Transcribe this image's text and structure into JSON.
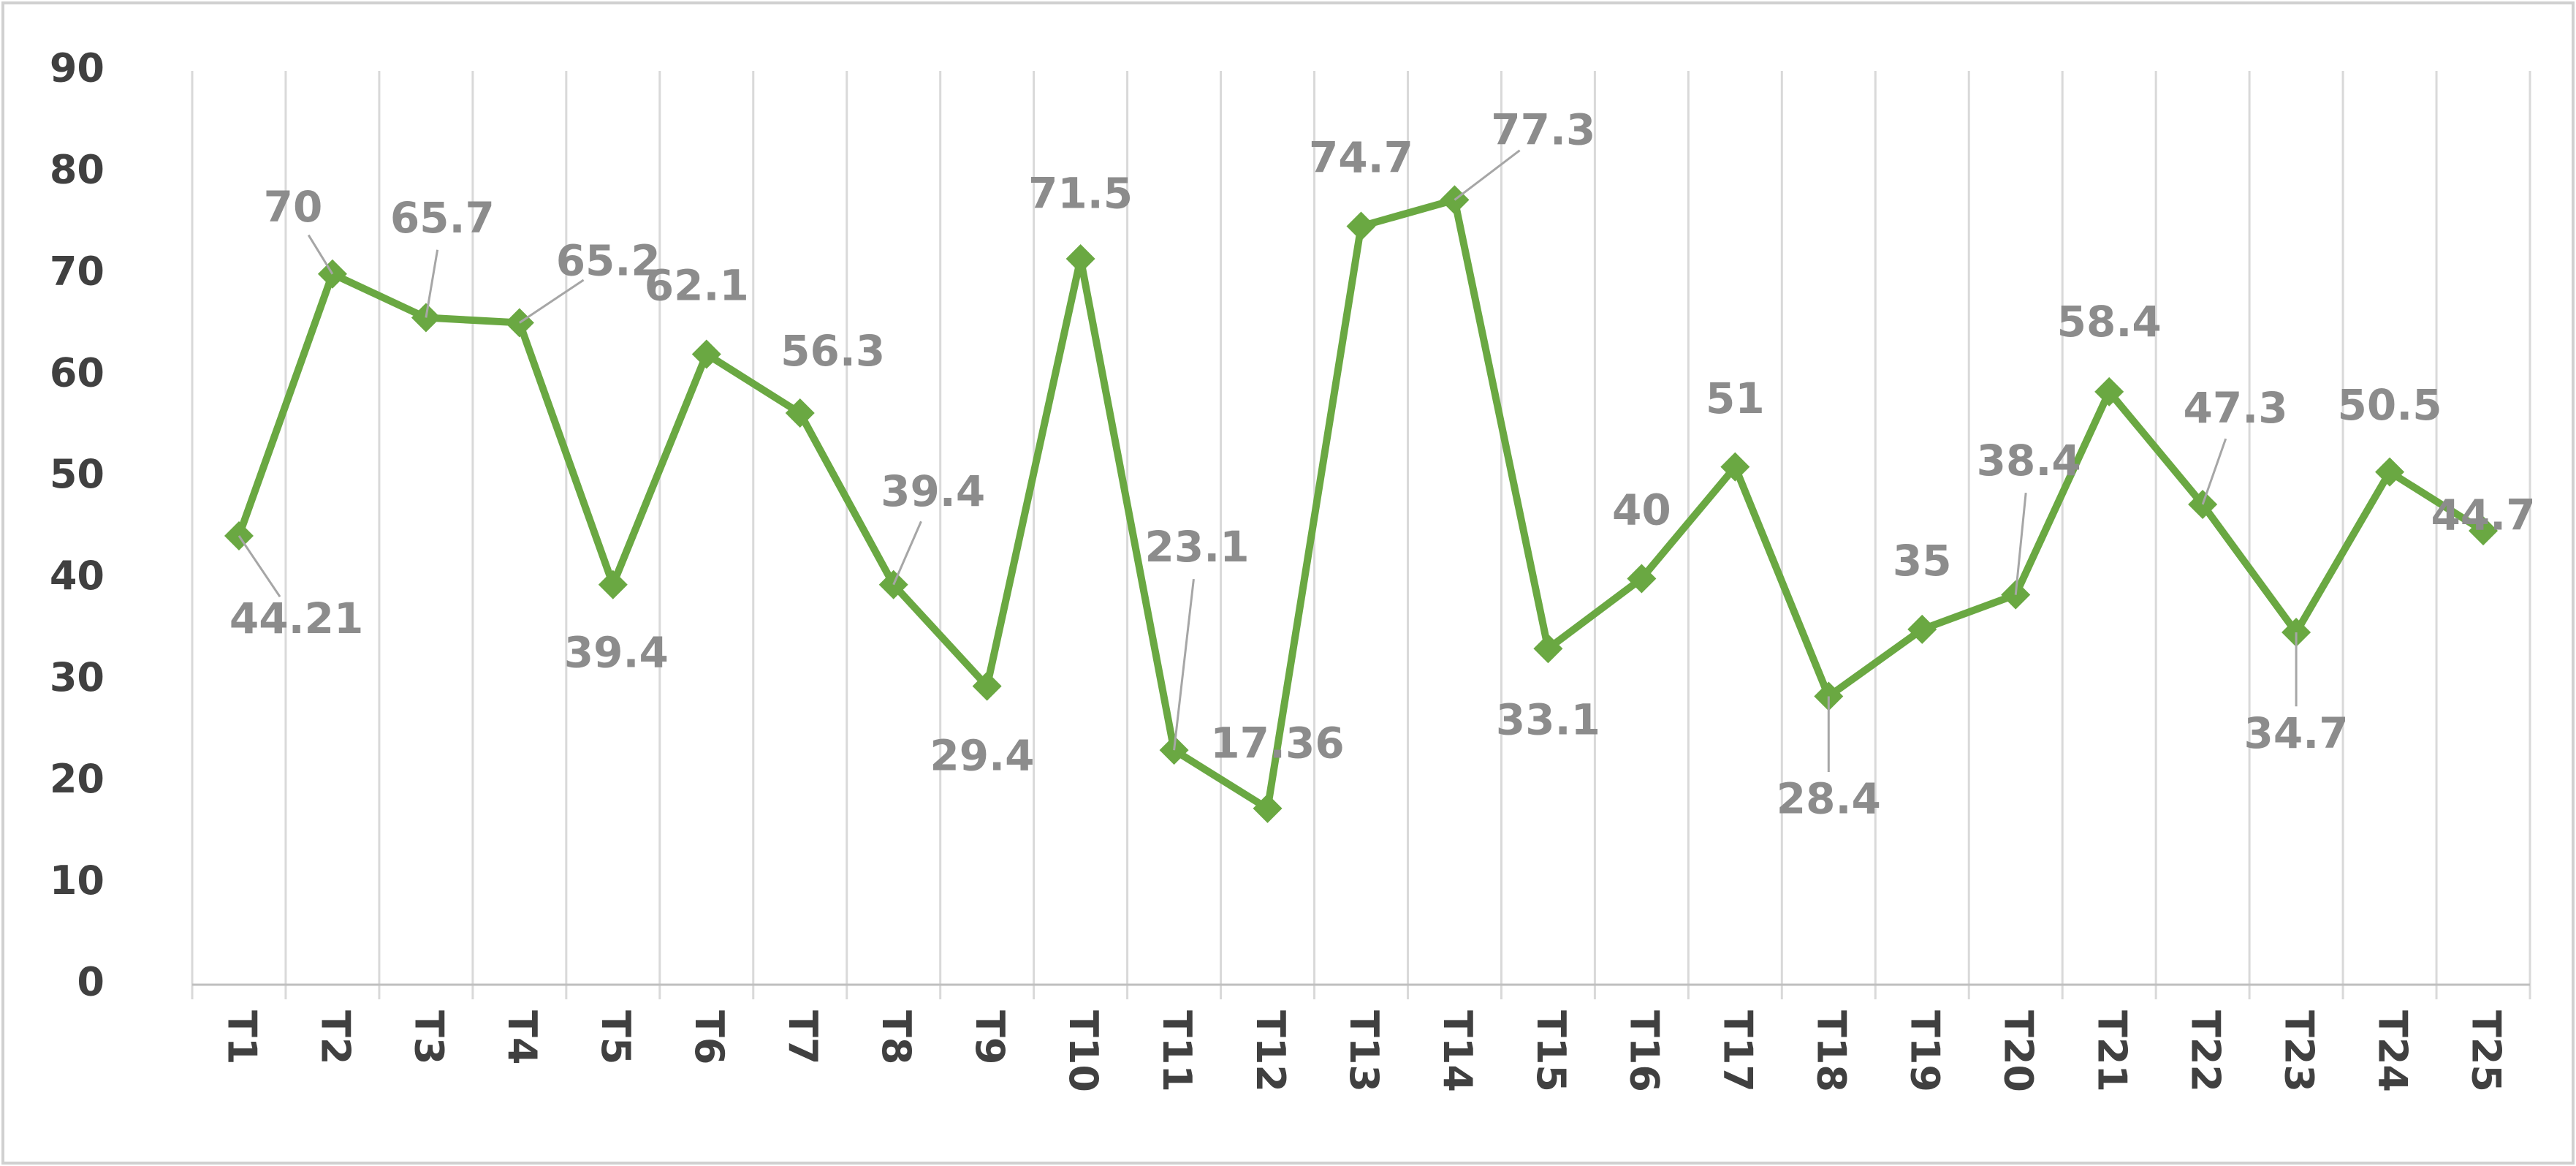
{
  "chart_data": {
    "type": "line",
    "categories": [
      "T1",
      "T2",
      "T3",
      "T4",
      "T5",
      "T6",
      "T7",
      "T8",
      "T9",
      "T10",
      "T11",
      "T12",
      "T13",
      "T14",
      "T15",
      "T16",
      "T17",
      "T18",
      "T19",
      "T20",
      "T21",
      "T22",
      "T23",
      "T24",
      "T25"
    ],
    "series": [
      {
        "color": "#6aa842",
        "values": [
          44.21,
          70,
          65.7,
          65.2,
          39.4,
          62.1,
          56.3,
          39.4,
          29.4,
          71.5,
          23.1,
          17.36,
          74.7,
          77.3,
          33.1,
          40,
          51,
          28.4,
          35,
          38.4,
          58.4,
          47.3,
          34.7,
          50.5,
          44.7
        ]
      }
    ],
    "ylim": [
      0,
      90
    ],
    "yticks": [
      0,
      10,
      20,
      30,
      40,
      50,
      60,
      70,
      80,
      90
    ],
    "grid": true,
    "data_labels": true
  }
}
